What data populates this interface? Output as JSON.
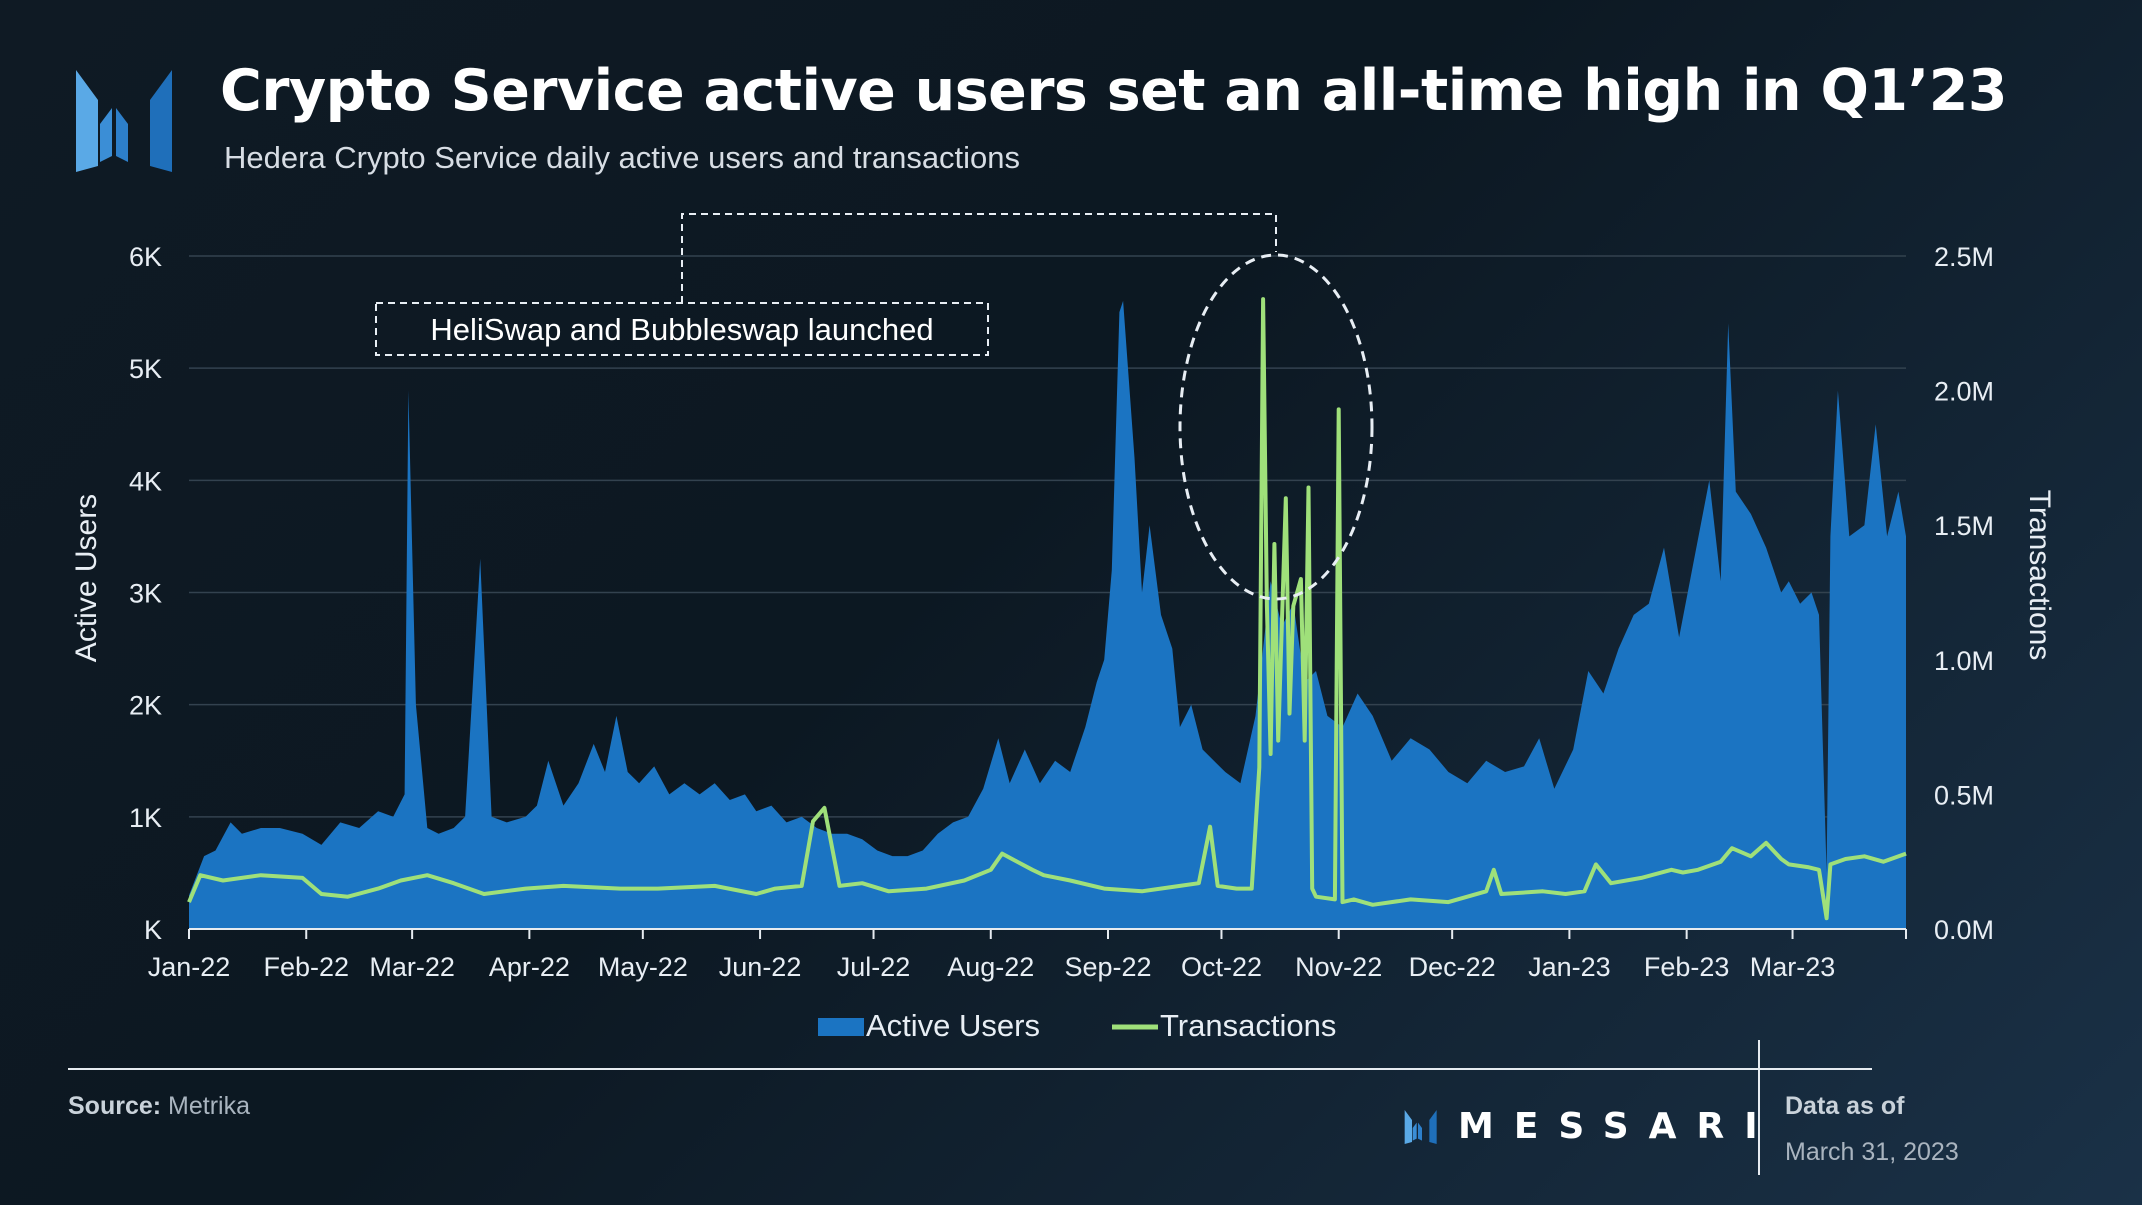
{
  "header": {
    "title": "Crypto Service active users set an all-time high in Q1’23",
    "subtitle": "Hedera Crypto Service daily active users and transactions"
  },
  "footer": {
    "source_label": "Source:",
    "source_value": "Metrika",
    "brand": "MESSARI",
    "asof_label": "Data as of",
    "asof_date": "March 31, 2023"
  },
  "colors": {
    "active_users": "#1b74c2",
    "transactions": "#9fe07a",
    "grid": "#33424f",
    "text": "#e8eef4"
  },
  "chart_data": {
    "type": "area",
    "title": "",
    "x_ticks": [
      "Jan-22",
      "Feb-22",
      "Mar-22",
      "Apr-22",
      "May-22",
      "Jun-22",
      "Jul-22",
      "Aug-22",
      "Sep-22",
      "Oct-22",
      "Nov-22",
      "Dec-22",
      "Jan-23",
      "Feb-23",
      "Mar-23"
    ],
    "y_left": {
      "label": "Active Users",
      "ticks": [
        "K",
        "1K",
        "2K",
        "3K",
        "4K",
        "5K",
        "6K"
      ],
      "range": [
        0,
        6000
      ]
    },
    "y_right": {
      "label": "Transactions",
      "ticks": [
        "0.0M",
        "0.5M",
        "1.0M",
        "1.5M",
        "2.0M",
        "2.5M"
      ],
      "range": [
        0,
        2500000
      ]
    },
    "annotation": "HeliSwap and Bubbleswap launched",
    "legend": [
      "Active Users",
      "Transactions"
    ],
    "legend_position": "bottom",
    "grid": true,
    "series": [
      {
        "name": "Active Users",
        "axis": "left",
        "chart_type": "area",
        "points": [
          [
            "2022-01-01",
            300
          ],
          [
            "2022-01-05",
            650
          ],
          [
            "2022-01-08",
            700
          ],
          [
            "2022-01-12",
            950
          ],
          [
            "2022-01-15",
            850
          ],
          [
            "2022-01-20",
            900
          ],
          [
            "2022-01-25",
            900
          ],
          [
            "2022-01-31",
            850
          ],
          [
            "2022-02-05",
            750
          ],
          [
            "2022-02-10",
            950
          ],
          [
            "2022-02-15",
            900
          ],
          [
            "2022-02-20",
            1050
          ],
          [
            "2022-02-24",
            1000
          ],
          [
            "2022-02-27",
            1200
          ],
          [
            "2022-02-28",
            4800
          ],
          [
            "2022-03-02",
            2000
          ],
          [
            "2022-03-05",
            900
          ],
          [
            "2022-03-08",
            850
          ],
          [
            "2022-03-12",
            900
          ],
          [
            "2022-03-15",
            1000
          ],
          [
            "2022-03-19",
            3300
          ],
          [
            "2022-03-22",
            1000
          ],
          [
            "2022-03-26",
            950
          ],
          [
            "2022-03-31",
            1000
          ],
          [
            "2022-04-03",
            1100
          ],
          [
            "2022-04-06",
            1500
          ],
          [
            "2022-04-10",
            1100
          ],
          [
            "2022-04-14",
            1300
          ],
          [
            "2022-04-18",
            1650
          ],
          [
            "2022-04-21",
            1400
          ],
          [
            "2022-04-24",
            1900
          ],
          [
            "2022-04-27",
            1400
          ],
          [
            "2022-04-30",
            1300
          ],
          [
            "2022-05-04",
            1450
          ],
          [
            "2022-05-08",
            1200
          ],
          [
            "2022-05-12",
            1300
          ],
          [
            "2022-05-16",
            1200
          ],
          [
            "2022-05-20",
            1300
          ],
          [
            "2022-05-24",
            1150
          ],
          [
            "2022-05-28",
            1200
          ],
          [
            "2022-05-31",
            1050
          ],
          [
            "2022-06-04",
            1100
          ],
          [
            "2022-06-08",
            950
          ],
          [
            "2022-06-12",
            1000
          ],
          [
            "2022-06-16",
            900
          ],
          [
            "2022-06-20",
            850
          ],
          [
            "2022-06-24",
            850
          ],
          [
            "2022-06-28",
            800
          ],
          [
            "2022-07-02",
            700
          ],
          [
            "2022-07-06",
            650
          ],
          [
            "2022-07-10",
            650
          ],
          [
            "2022-07-14",
            700
          ],
          [
            "2022-07-18",
            850
          ],
          [
            "2022-07-22",
            950
          ],
          [
            "2022-07-26",
            1000
          ],
          [
            "2022-07-30",
            1250
          ],
          [
            "2022-08-03",
            1700
          ],
          [
            "2022-08-06",
            1300
          ],
          [
            "2022-08-10",
            1600
          ],
          [
            "2022-08-14",
            1300
          ],
          [
            "2022-08-18",
            1500
          ],
          [
            "2022-08-22",
            1400
          ],
          [
            "2022-08-26",
            1800
          ],
          [
            "2022-08-29",
            2200
          ],
          [
            "2022-08-31",
            2400
          ],
          [
            "2022-09-02",
            3200
          ],
          [
            "2022-09-04",
            5500
          ],
          [
            "2022-09-05",
            5600
          ],
          [
            "2022-09-08",
            4200
          ],
          [
            "2022-09-10",
            3000
          ],
          [
            "2022-09-12",
            3600
          ],
          [
            "2022-09-15",
            2800
          ],
          [
            "2022-09-18",
            2500
          ],
          [
            "2022-09-20",
            1800
          ],
          [
            "2022-09-23",
            2000
          ],
          [
            "2022-09-26",
            1600
          ],
          [
            "2022-09-29",
            1500
          ],
          [
            "2022-10-02",
            1400
          ],
          [
            "2022-10-06",
            1300
          ],
          [
            "2022-10-10",
            1900
          ],
          [
            "2022-10-14",
            3100
          ],
          [
            "2022-10-17",
            2700
          ],
          [
            "2022-10-20",
            2900
          ],
          [
            "2022-10-23",
            2200
          ],
          [
            "2022-10-26",
            2300
          ],
          [
            "2022-10-29",
            1900
          ],
          [
            "2022-11-02",
            1800
          ],
          [
            "2022-11-06",
            2100
          ],
          [
            "2022-11-10",
            1900
          ],
          [
            "2022-11-15",
            1500
          ],
          [
            "2022-11-20",
            1700
          ],
          [
            "2022-11-25",
            1600
          ],
          [
            "2022-11-30",
            1400
          ],
          [
            "2022-12-05",
            1300
          ],
          [
            "2022-12-10",
            1500
          ],
          [
            "2022-12-15",
            1400
          ],
          [
            "2022-12-20",
            1450
          ],
          [
            "2022-12-24",
            1700
          ],
          [
            "2022-12-28",
            1250
          ],
          [
            "2023-01-02",
            1600
          ],
          [
            "2023-01-06",
            2300
          ],
          [
            "2023-01-10",
            2100
          ],
          [
            "2023-01-14",
            2500
          ],
          [
            "2023-01-18",
            2800
          ],
          [
            "2023-01-22",
            2900
          ],
          [
            "2023-01-26",
            3400
          ],
          [
            "2023-01-30",
            2600
          ],
          [
            "2023-02-03",
            3300
          ],
          [
            "2023-02-07",
            4000
          ],
          [
            "2023-02-10",
            3100
          ],
          [
            "2023-02-12",
            5400
          ],
          [
            "2023-02-14",
            3900
          ],
          [
            "2023-02-18",
            3700
          ],
          [
            "2023-02-22",
            3400
          ],
          [
            "2023-02-26",
            3000
          ],
          [
            "2023-02-28",
            3100
          ],
          [
            "2023-03-03",
            2900
          ],
          [
            "2023-03-06",
            3000
          ],
          [
            "2023-03-08",
            2800
          ],
          [
            "2023-03-10",
            500
          ],
          [
            "2023-03-11",
            3500
          ],
          [
            "2023-03-13",
            4800
          ],
          [
            "2023-03-16",
            3500
          ],
          [
            "2023-03-20",
            3600
          ],
          [
            "2023-03-23",
            4500
          ],
          [
            "2023-03-26",
            3500
          ],
          [
            "2023-03-29",
            3900
          ],
          [
            "2023-03-31",
            3500
          ]
        ]
      },
      {
        "name": "Transactions",
        "axis": "right",
        "chart_type": "line",
        "points": [
          [
            "2022-01-01",
            100000
          ],
          [
            "2022-01-04",
            200000
          ],
          [
            "2022-01-10",
            180000
          ],
          [
            "2022-01-20",
            200000
          ],
          [
            "2022-01-31",
            190000
          ],
          [
            "2022-02-05",
            130000
          ],
          [
            "2022-02-12",
            120000
          ],
          [
            "2022-02-20",
            150000
          ],
          [
            "2022-02-26",
            180000
          ],
          [
            "2022-03-05",
            200000
          ],
          [
            "2022-03-12",
            170000
          ],
          [
            "2022-03-20",
            130000
          ],
          [
            "2022-03-31",
            150000
          ],
          [
            "2022-04-10",
            160000
          ],
          [
            "2022-04-25",
            150000
          ],
          [
            "2022-05-05",
            150000
          ],
          [
            "2022-05-20",
            160000
          ],
          [
            "2022-05-31",
            130000
          ],
          [
            "2022-06-05",
            150000
          ],
          [
            "2022-06-12",
            160000
          ],
          [
            "2022-06-15",
            400000
          ],
          [
            "2022-06-18",
            450000
          ],
          [
            "2022-06-22",
            160000
          ],
          [
            "2022-06-28",
            170000
          ],
          [
            "2022-07-05",
            140000
          ],
          [
            "2022-07-15",
            150000
          ],
          [
            "2022-07-25",
            180000
          ],
          [
            "2022-08-01",
            220000
          ],
          [
            "2022-08-04",
            280000
          ],
          [
            "2022-08-08",
            250000
          ],
          [
            "2022-08-12",
            220000
          ],
          [
            "2022-08-15",
            200000
          ],
          [
            "2022-08-22",
            180000
          ],
          [
            "2022-08-31",
            150000
          ],
          [
            "2022-09-10",
            140000
          ],
          [
            "2022-09-20",
            160000
          ],
          [
            "2022-09-25",
            170000
          ],
          [
            "2022-09-28",
            380000
          ],
          [
            "2022-09-30",
            160000
          ],
          [
            "2022-10-05",
            150000
          ],
          [
            "2022-10-09",
            150000
          ],
          [
            "2022-10-11",
            600000
          ],
          [
            "2022-10-12",
            2340000
          ],
          [
            "2022-10-13",
            1200000
          ],
          [
            "2022-10-14",
            650000
          ],
          [
            "2022-10-15",
            1430000
          ],
          [
            "2022-10-16",
            700000
          ],
          [
            "2022-10-18",
            1600000
          ],
          [
            "2022-10-19",
            800000
          ],
          [
            "2022-10-20",
            1200000
          ],
          [
            "2022-10-22",
            1300000
          ],
          [
            "2022-10-23",
            700000
          ],
          [
            "2022-10-24",
            1640000
          ],
          [
            "2022-10-25",
            150000
          ],
          [
            "2022-10-26",
            120000
          ],
          [
            "2022-10-31",
            110000
          ],
          [
            "2022-11-01",
            1930000
          ],
          [
            "2022-11-02",
            100000
          ],
          [
            "2022-11-05",
            110000
          ],
          [
            "2022-11-10",
            90000
          ],
          [
            "2022-11-20",
            110000
          ],
          [
            "2022-11-30",
            100000
          ],
          [
            "2022-12-05",
            120000
          ],
          [
            "2022-12-10",
            140000
          ],
          [
            "2022-12-12",
            220000
          ],
          [
            "2022-12-14",
            130000
          ],
          [
            "2022-12-25",
            140000
          ],
          [
            "2022-12-31",
            130000
          ],
          [
            "2023-01-05",
            140000
          ],
          [
            "2023-01-08",
            240000
          ],
          [
            "2023-01-12",
            170000
          ],
          [
            "2023-01-20",
            190000
          ],
          [
            "2023-01-28",
            220000
          ],
          [
            "2023-01-31",
            210000
          ],
          [
            "2023-02-04",
            220000
          ],
          [
            "2023-02-10",
            250000
          ],
          [
            "2023-02-13",
            300000
          ],
          [
            "2023-02-18",
            270000
          ],
          [
            "2023-02-22",
            320000
          ],
          [
            "2023-02-26",
            260000
          ],
          [
            "2023-02-28",
            240000
          ],
          [
            "2023-03-05",
            230000
          ],
          [
            "2023-03-08",
            220000
          ],
          [
            "2023-03-10",
            40000
          ],
          [
            "2023-03-11",
            240000
          ],
          [
            "2023-03-15",
            260000
          ],
          [
            "2023-03-20",
            270000
          ],
          [
            "2023-03-25",
            250000
          ],
          [
            "2023-03-31",
            280000
          ]
        ]
      }
    ]
  }
}
